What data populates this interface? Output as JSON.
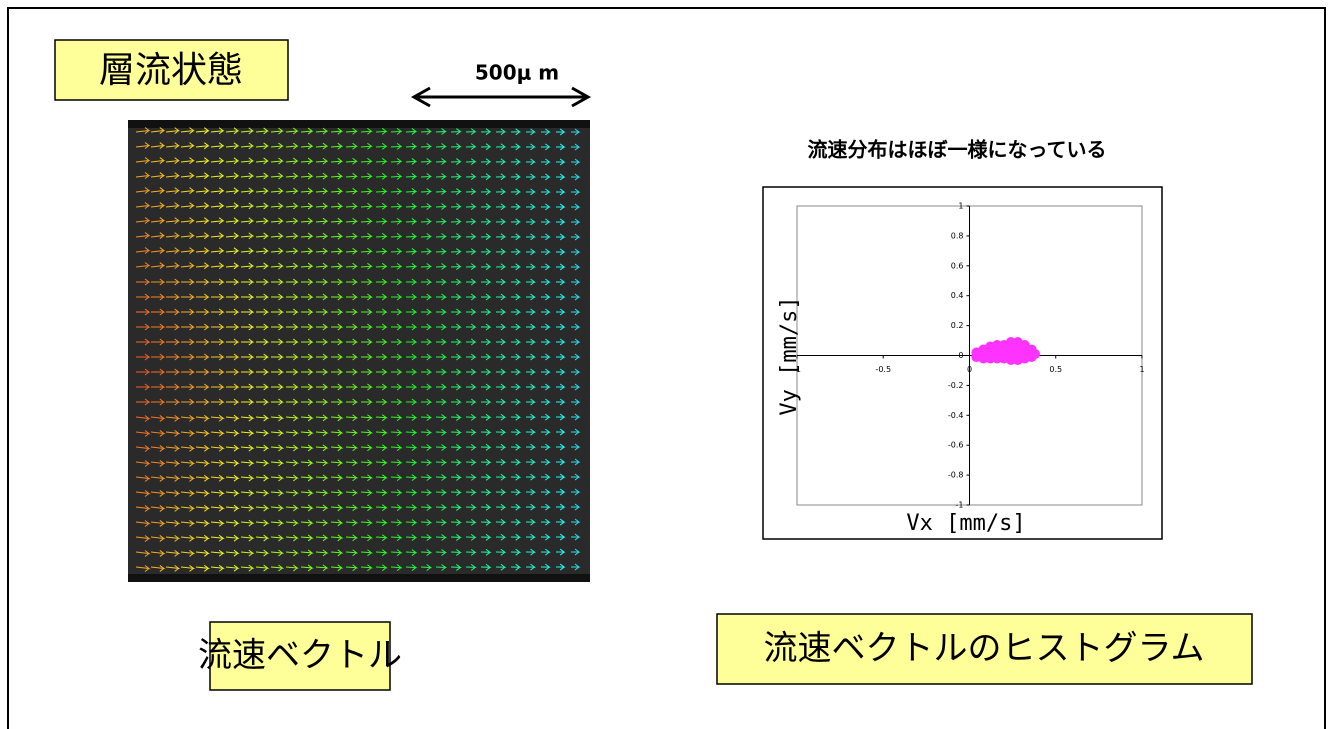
{
  "title_box": "層流状態",
  "scale_bar": "500μ m",
  "caption_left": "流速ベクトル",
  "caption_right": "流速ベクトルのヒストグラム",
  "chart_data": {
    "type": "scatter",
    "annotation": "流速分布はほぼ一様になっている",
    "x_label": "Vx [mm/s]",
    "y_label": "Vy [mm/s]",
    "xlim": [
      -1,
      1
    ],
    "ylim": [
      -1,
      1
    ],
    "xticks": [
      -1,
      -0.5,
      0,
      0.5,
      1
    ],
    "yticks": [
      -1,
      -0.8,
      -0.6,
      -0.4,
      -0.2,
      0,
      0.2,
      0.4,
      0.6,
      0.8,
      1
    ],
    "color": "#ff33ff",
    "x": [
      0.04,
      0.04,
      0.08,
      0.08,
      0.08,
      0.12,
      0.12,
      0.12,
      0.12,
      0.16,
      0.16,
      0.16,
      0.16,
      0.2,
      0.2,
      0.2,
      0.2,
      0.24,
      0.24,
      0.24,
      0.24,
      0.24,
      0.28,
      0.28,
      0.28,
      0.28,
      0.28,
      0.32,
      0.32,
      0.32,
      0.32,
      0.36,
      0.36,
      0.36,
      0.38
    ],
    "values": [
      -0.01,
      0.02,
      -0.02,
      0.01,
      0.04,
      -0.02,
      0.01,
      0.04,
      0.06,
      -0.02,
      0.01,
      0.04,
      0.07,
      -0.02,
      0.01,
      0.04,
      0.07,
      -0.03,
      0.01,
      0.04,
      0.07,
      0.09,
      -0.03,
      0.01,
      0.04,
      0.07,
      0.09,
      -0.02,
      0.01,
      0.04,
      0.07,
      -0.01,
      0.02,
      0.04,
      0.01
    ]
  }
}
